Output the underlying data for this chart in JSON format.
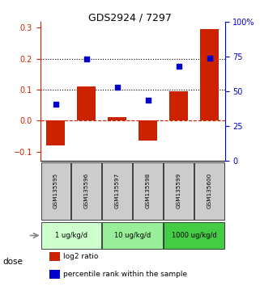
{
  "title": "GDS2924 / 7297",
  "samples": [
    "GSM135595",
    "GSM135596",
    "GSM135597",
    "GSM135598",
    "GSM135599",
    "GSM135600"
  ],
  "log2_ratio": [
    -0.08,
    0.11,
    0.01,
    -0.065,
    0.095,
    0.295
  ],
  "percentile_rank_norm": [
    0.053,
    0.2,
    0.107,
    0.065,
    0.175,
    0.202
  ],
  "bar_color": "#cc2200",
  "dot_color": "#0000cc",
  "ylim_left": [
    -0.13,
    0.32
  ],
  "ylim_right": [
    0,
    100
  ],
  "yticks_left": [
    -0.1,
    0.0,
    0.1,
    0.2,
    0.3
  ],
  "yticks_right": [
    0,
    25,
    50,
    75,
    100
  ],
  "hlines_dotted": [
    0.1,
    0.2
  ],
  "hline_dashed": 0.0,
  "dose_groups": [
    {
      "label": "1 ug/kg/d",
      "samples": [
        0,
        1
      ],
      "color": "#ccffcc"
    },
    {
      "label": "10 ug/kg/d",
      "samples": [
        2,
        3
      ],
      "color": "#99ee99"
    },
    {
      "label": "1000 ug/kg/d",
      "samples": [
        4,
        5
      ],
      "color": "#44cc44"
    }
  ],
  "sample_bg_color": "#cccccc",
  "dose_label": "dose",
  "legend_bar_label": "log2 ratio",
  "legend_dot_label": "percentile rank within the sample",
  "bar_width": 0.6
}
